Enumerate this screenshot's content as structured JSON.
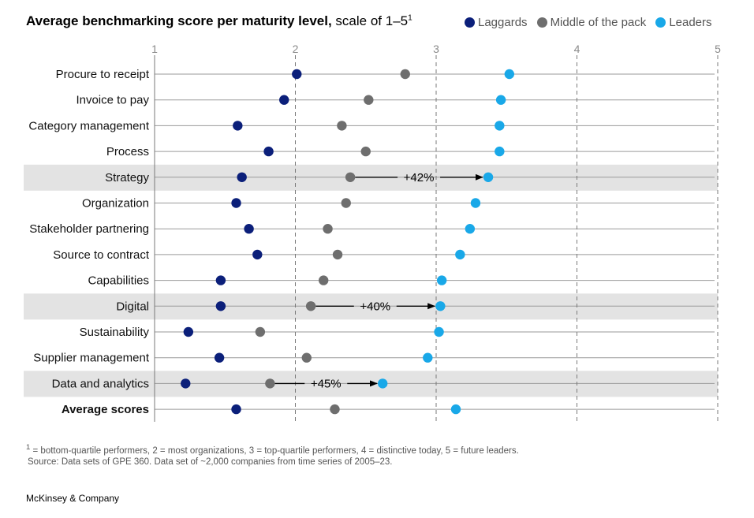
{
  "title": {
    "bold": "Average benchmarking score per maturity level,",
    "light": " scale of 1–5",
    "sup": "1"
  },
  "colors": {
    "laggards": "#0b1f7a",
    "middle": "#6e6e6e",
    "leaders": "#19a8e8",
    "highlight": "#e3e3e3"
  },
  "chart_data": {
    "type": "scatter",
    "title": "Average benchmarking score per maturity level, scale of 1–5",
    "xlim": [
      1,
      5
    ],
    "xticks": [
      1,
      2,
      3,
      4,
      5
    ],
    "xlabel": "",
    "ylabel": "",
    "legend_position": "top-right",
    "categories": [
      "Procure to receipt",
      "Invoice to pay",
      "Category management",
      "Process",
      "Strategy",
      "Organization",
      "Stakeholder partnering",
      "Source to contract",
      "Capabilities",
      "Digital",
      "Sustainability",
      "Supplier management",
      "Data and analytics",
      "Average scores"
    ],
    "bold_categories": [
      "Average scores"
    ],
    "highlighted_categories": [
      "Strategy",
      "Digital",
      "Data and analytics"
    ],
    "series": [
      {
        "name": "Laggards",
        "key": "laggards",
        "values": [
          2.01,
          1.92,
          1.59,
          1.81,
          1.62,
          1.58,
          1.67,
          1.73,
          1.47,
          1.47,
          1.24,
          1.46,
          1.22,
          1.58
        ]
      },
      {
        "name": "Middle of the pack",
        "key": "middle",
        "values": [
          2.78,
          2.52,
          2.33,
          2.5,
          2.39,
          2.36,
          2.23,
          2.3,
          2.2,
          2.11,
          1.75,
          2.08,
          1.82,
          2.28
        ]
      },
      {
        "name": "Leaders",
        "key": "leaders",
        "values": [
          3.52,
          3.46,
          3.45,
          3.45,
          3.37,
          3.28,
          3.24,
          3.17,
          3.04,
          3.03,
          3.02,
          2.94,
          2.62,
          3.14
        ]
      }
    ],
    "annotations": [
      {
        "category": "Strategy",
        "label": "+42%"
      },
      {
        "category": "Digital",
        "label": "+40%"
      },
      {
        "category": "Data and analytics",
        "label": "+45%"
      }
    ]
  },
  "footnote": {
    "line1_sup": "1",
    "line1": " = bottom-quartile performers, 2 = most organizations, 3 = top-quartile performers, 4 = distinctive today, 5 = future leaders.",
    "line2": "Source: Data sets of GPE 360. Data set of ~2,000 companies from time series of 2005–23."
  },
  "brand": "McKinsey & Company"
}
